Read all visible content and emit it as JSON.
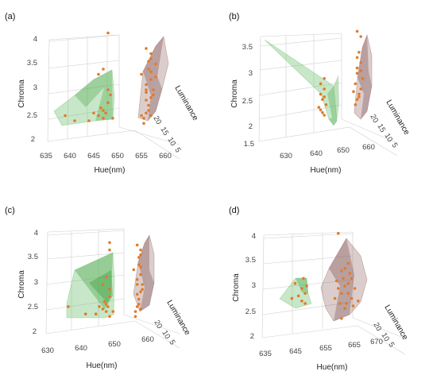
{
  "colors": {
    "green_hull": "#62bb62",
    "brown_hull": "#8a5a5a",
    "point": "#e07b2a"
  },
  "chart_data": [
    {
      "type": "scatter",
      "panel_label": "(a)",
      "xlabel": "Hue(nm)",
      "ylabel": "Chroma",
      "zlabel": "Luminance",
      "x_ticks": [
        "635",
        "640",
        "645",
        "650",
        "655",
        "660"
      ],
      "y_ticks": [
        "2",
        "2.5",
        "3",
        "3.5",
        "4"
      ],
      "z_ticks": [
        "20",
        "15",
        "10",
        "5"
      ],
      "xlim": [
        635,
        660
      ],
      "ylim": [
        2,
        4
      ],
      "series": [
        {
          "hull": "green",
          "points": [
            [
              647,
              2.6
            ],
            [
              648,
              2.75
            ],
            [
              646,
              2.5
            ],
            [
              648.5,
              2.9
            ],
            [
              647.5,
              2.55
            ],
            [
              646.5,
              2.65
            ],
            [
              649,
              2.45
            ],
            [
              645,
              2.55
            ],
            [
              648,
              3.0
            ],
            [
              647,
              2.45
            ],
            [
              644,
              2.4
            ],
            [
              646,
              3.3
            ],
            [
              647,
              3.4
            ],
            [
              641,
              2.4
            ],
            [
              639,
              2.5
            ],
            [
              648,
              4.1
            ]
          ]
        },
        {
          "hull": "brown",
          "points": [
            [
              656,
              3.8
            ],
            [
              657,
              3.6
            ],
            [
              656.5,
              3.4
            ],
            [
              657,
              3.2
            ],
            [
              656,
              3.0
            ],
            [
              657.5,
              2.9
            ],
            [
              656,
              2.8
            ],
            [
              656.5,
              2.6
            ],
            [
              657,
              2.5
            ],
            [
              655.5,
              2.45
            ],
            [
              658,
              3.5
            ],
            [
              657,
              3.7
            ],
            [
              656,
              3.1
            ],
            [
              656.5,
              2.7
            ],
            [
              655,
              3.3
            ],
            [
              657.5,
              3.0
            ],
            [
              656,
              2.55
            ],
            [
              657,
              2.85
            ],
            [
              655.5,
              2.35
            ],
            [
              656.5,
              3.55
            ],
            [
              657,
              3.35
            ],
            [
              656,
              2.95
            ],
            [
              658,
              3.25
            ],
            [
              655,
              2.5
            ]
          ]
        }
      ]
    },
    {
      "type": "scatter",
      "panel_label": "(b)",
      "xlabel": "Hue(nm)",
      "ylabel": "Chroma",
      "zlabel": "Luminance",
      "x_ticks": [
        "630",
        "640",
        "650",
        "660"
      ],
      "y_ticks": [
        "1.5",
        "2",
        "2.5",
        "3",
        "3.5"
      ],
      "z_ticks": [
        "20",
        "15",
        "10",
        "5"
      ],
      "xlim": [
        630,
        660
      ],
      "ylim": [
        1.5,
        3.5
      ],
      "series": [
        {
          "hull": "green",
          "points": [
            [
              646,
              2.1
            ],
            [
              647,
              2.0
            ],
            [
              646.5,
              2.3
            ],
            [
              647,
              2.5
            ],
            [
              646,
              2.6
            ],
            [
              647.5,
              2.2
            ],
            [
              646,
              2.4
            ],
            [
              645.5,
              2.15
            ],
            [
              647,
              2.7
            ],
            [
              646.5,
              2.05
            ],
            [
              647,
              2.35
            ]
          ]
        },
        {
          "hull": "brown",
          "points": [
            [
              656,
              3.6
            ],
            [
              657,
              3.5
            ],
            [
              656.5,
              3.2
            ],
            [
              657,
              3.0
            ],
            [
              656,
              2.8
            ],
            [
              655.5,
              2.6
            ],
            [
              656.5,
              2.4
            ],
            [
              656,
              2.3
            ],
            [
              657,
              2.5
            ],
            [
              656,
              2.9
            ],
            [
              655,
              2.45
            ],
            [
              657.5,
              2.7
            ],
            [
              656,
              3.1
            ],
            [
              656.5,
              2.35
            ],
            [
              655.5,
              2.2
            ],
            [
              657,
              2.85
            ]
          ]
        }
      ]
    },
    {
      "type": "scatter",
      "panel_label": "(c)",
      "xlabel": "Hue(nm)",
      "ylabel": "Chroma",
      "zlabel": "Luminance",
      "x_ticks": [
        "630",
        "640",
        "650",
        "660"
      ],
      "y_ticks": [
        "2",
        "2.5",
        "3",
        "3.5",
        "4"
      ],
      "z_ticks": [
        "20",
        "10",
        "5"
      ],
      "xlim": [
        630,
        660
      ],
      "ylim": [
        2,
        4
      ],
      "series": [
        {
          "hull": "green",
          "points": [
            [
              647,
              2.6
            ],
            [
              648,
              2.75
            ],
            [
              646,
              2.5
            ],
            [
              648,
              2.9
            ],
            [
              647.5,
              2.55
            ],
            [
              646.5,
              2.65
            ],
            [
              649,
              2.45
            ],
            [
              645,
              2.55
            ],
            [
              647,
              2.45
            ],
            [
              644,
              2.4
            ],
            [
              646,
              3.0
            ],
            [
              647,
              3.15
            ],
            [
              641,
              2.4
            ],
            [
              636,
              2.55
            ],
            [
              648,
              3.7
            ],
            [
              648,
              3.85
            ],
            [
              648,
              2.35
            ]
          ]
        },
        {
          "hull": "brown",
          "points": [
            [
              656,
              3.8
            ],
            [
              657,
              3.6
            ],
            [
              656.5,
              3.4
            ],
            [
              657,
              3.2
            ],
            [
              656,
              3.0
            ],
            [
              657.5,
              2.9
            ],
            [
              656,
              2.8
            ],
            [
              656.5,
              2.6
            ],
            [
              657,
              2.5
            ],
            [
              655.5,
              2.45
            ],
            [
              657,
              3.7
            ],
            [
              656,
              3.1
            ],
            [
              656.5,
              2.7
            ],
            [
              655,
              3.3
            ],
            [
              657.5,
              3.0
            ],
            [
              656,
              2.55
            ],
            [
              657,
              2.85
            ],
            [
              655.5,
              2.35
            ],
            [
              656.5,
              3.55
            ],
            [
              657,
              3.35
            ]
          ]
        }
      ]
    },
    {
      "type": "scatter",
      "panel_label": "(d)",
      "xlabel": "Hue(nm)",
      "ylabel": "Chroma",
      "zlabel": "Luminance",
      "x_ticks": [
        "635",
        "645",
        "655",
        "665",
        "670"
      ],
      "y_ticks": [
        "2",
        "2.5",
        "3",
        "3.5",
        "4"
      ],
      "z_ticks": [
        "20",
        "10",
        "5"
      ],
      "xlim": [
        635,
        670
      ],
      "ylim": [
        2,
        4
      ],
      "series": [
        {
          "hull": "green",
          "points": [
            [
              646,
              3.0
            ],
            [
              647,
              2.9
            ],
            [
              646.5,
              3.2
            ],
            [
              645,
              2.85
            ],
            [
              647.5,
              3.05
            ],
            [
              643,
              2.8
            ],
            [
              646,
              2.75
            ],
            [
              644,
              3.1
            ],
            [
              647,
              2.7
            ]
          ]
        },
        {
          "hull": "brown",
          "points": [
            [
              659,
              3.4
            ],
            [
              660,
              3.1
            ],
            [
              658,
              2.9
            ],
            [
              661,
              2.8
            ],
            [
              657,
              3.0
            ],
            [
              659.5,
              2.7
            ],
            [
              660.5,
              3.3
            ],
            [
              658.5,
              3.2
            ],
            [
              662,
              3.0
            ],
            [
              656,
              2.8
            ],
            [
              659,
              2.6
            ],
            [
              661,
              3.2
            ],
            [
              657.5,
              2.7
            ],
            [
              660,
              2.9
            ],
            [
              663,
              2.75
            ],
            [
              658,
              3.35
            ],
            [
              659,
              3.05
            ],
            [
              656.5,
              3.15
            ],
            [
              661.5,
              2.65
            ],
            [
              657,
              4.1
            ],
            [
              658,
              2.4
            ],
            [
              660,
              3.5
            ]
          ]
        }
      ]
    }
  ]
}
